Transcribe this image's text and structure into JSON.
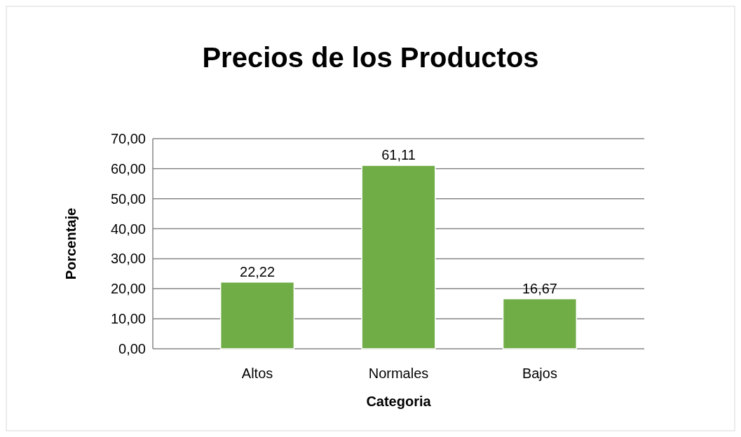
{
  "chart_data": {
    "type": "bar",
    "title": "Precios de los Productos",
    "xlabel": "Categoria",
    "ylabel": "Porcentaje",
    "categories": [
      "Altos",
      "Normales",
      "Bajos"
    ],
    "values": [
      22.22,
      61.11,
      16.67
    ],
    "value_labels": [
      "22,22",
      "61,11",
      "16,67"
    ],
    "color": "#70ad47",
    "ylim": [
      0,
      70
    ],
    "yticks": [
      {
        "value": 0,
        "label": "0,00"
      },
      {
        "value": 10,
        "label": "10,00"
      },
      {
        "value": 20,
        "label": "20,00"
      },
      {
        "value": 30,
        "label": "30,00"
      },
      {
        "value": 40,
        "label": "40,00"
      },
      {
        "value": 50,
        "label": "50,00"
      },
      {
        "value": 60,
        "label": "60,00"
      },
      {
        "value": 70,
        "label": "70,00"
      }
    ],
    "grid": true
  }
}
